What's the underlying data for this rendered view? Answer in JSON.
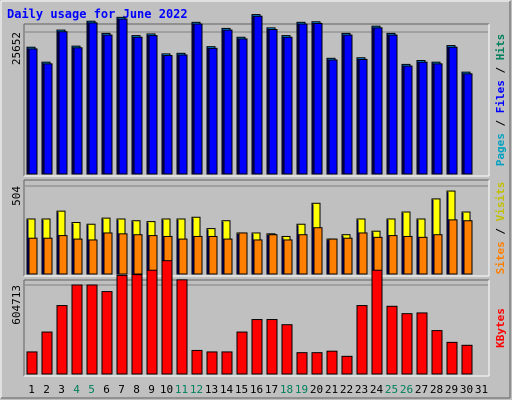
{
  "chart_data": {
    "type": "bar",
    "title": "Daily usage for June 2022",
    "categories": [
      "1",
      "2",
      "3",
      "4",
      "5",
      "6",
      "7",
      "8",
      "9",
      "10",
      "11",
      "12",
      "13",
      "14",
      "15",
      "16",
      "17",
      "18",
      "19",
      "20",
      "21",
      "22",
      "23",
      "24",
      "25",
      "26",
      "27",
      "28",
      "29",
      "30",
      "31"
    ],
    "weekend_days": [
      "4",
      "5",
      "11",
      "12",
      "18",
      "19",
      "25",
      "26"
    ],
    "colors": {
      "background": "#c0c0c0",
      "title": "#0000ff",
      "hits": "#00a0ff",
      "files": "#0000ff",
      "pages": "#00c0ff",
      "visits": "#ffff00",
      "sites": "#ff8000",
      "kbytes": "#ff0000",
      "weekend_label": "#00805c",
      "weekday_label": "#000000"
    },
    "panels": [
      {
        "id": "hits",
        "ytick_label": "25652",
        "ymax": 25652,
        "right_labels": [
          {
            "text": "Pages",
            "color": "#00a0c0"
          },
          {
            "text": " / ",
            "color": "#000000"
          },
          {
            "text": "Files",
            "color": "#0000ff"
          },
          {
            "text": " / ",
            "color": "#000000"
          },
          {
            "text": "Hits",
            "color": "#00805c"
          }
        ],
        "series": [
          {
            "name": "Hits",
            "values": [
              22900,
              20200,
              26000,
              23100,
              27600,
              25400,
              28300,
              25000,
              25300,
              21700,
              21800,
              27400,
              23000,
              26300,
              24700,
              28800,
              26400,
              25000,
              27400,
              27500,
              20900,
              25400,
              21000,
              26700,
              25400,
              19800,
              20500,
              20200,
              23200,
              18400,
              null
            ]
          },
          {
            "name": "Files",
            "values": [
              22600,
              19900,
              25700,
              22800,
              27300,
              25100,
              28000,
              24700,
              25000,
              21400,
              21500,
              27100,
              22700,
              26000,
              24400,
              28500,
              26100,
              24700,
              27100,
              27200,
              20600,
              25100,
              20700,
              26400,
              25100,
              19500,
              20200,
              19900,
              22900,
              18100,
              null
            ]
          }
        ]
      },
      {
        "id": "visits",
        "ytick_label": "504",
        "ymax": 504,
        "right_labels": [
          {
            "text": "Sites",
            "color": "#ff8000"
          },
          {
            "text": " / ",
            "color": "#000000"
          },
          {
            "text": "Visits",
            "color": "#c0c000"
          }
        ],
        "series": [
          {
            "name": "Visits",
            "values": [
              315,
              315,
              360,
              295,
              285,
              320,
              315,
              305,
              300,
              315,
              315,
              325,
              260,
              305,
              235,
              235,
              230,
              215,
              285,
              405,
              200,
              225,
              315,
              245,
              315,
              355,
              315,
              430,
              475,
              355,
              null
            ]
          },
          {
            "name": "Sites",
            "values": [
              205,
              205,
              220,
              200,
              195,
              235,
              230,
              225,
              220,
              215,
              200,
              215,
              215,
              200,
              235,
              195,
              225,
              195,
              225,
              265,
              200,
              205,
              235,
              210,
              220,
              215,
              210,
              225,
              310,
              305,
              null
            ]
          }
        ]
      },
      {
        "id": "kbytes",
        "ytick_label": "604713",
        "ymax": 604713,
        "right_labels": [
          {
            "text": "KBytes",
            "color": "#ff0000"
          }
        ],
        "series": [
          {
            "name": "KBytes",
            "values": [
              150000,
              285000,
              465000,
              605000,
              605000,
              560000,
              670000,
              675000,
              705000,
              770000,
              640000,
              160000,
              150000,
              150000,
              285000,
              370000,
              370000,
              335000,
              145000,
              145000,
              155000,
              120000,
              465000,
              705000,
              460000,
              410000,
              415000,
              295000,
              215000,
              195000,
              null
            ]
          }
        ]
      }
    ]
  }
}
